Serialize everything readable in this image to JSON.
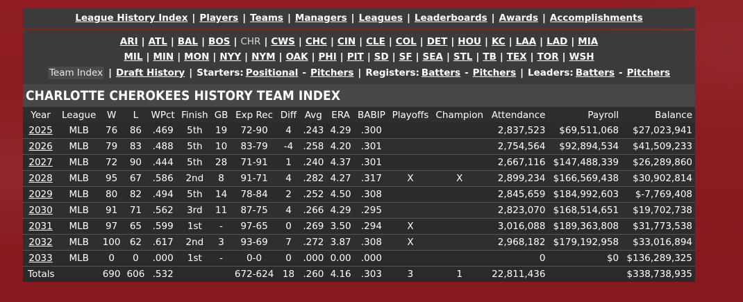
{
  "top_nav": [
    {
      "label": "League History Index"
    },
    {
      "label": "Players"
    },
    {
      "label": "Teams"
    },
    {
      "label": "Managers"
    },
    {
      "label": "Leagues"
    },
    {
      "label": "Leaderboards"
    },
    {
      "label": "Awards"
    },
    {
      "label": "Accomplishments"
    }
  ],
  "teams_row1": [
    "ARI",
    "ATL",
    "BAL",
    "BOS",
    "CHR",
    "CWS",
    "CHC",
    "CIN",
    "CLE",
    "COL",
    "DET",
    "HOU",
    "KC",
    "LAA",
    "LAD",
    "MIA"
  ],
  "teams_row2": [
    "MIL",
    "MIN",
    "MON",
    "NYY",
    "NYM",
    "OAK",
    "PHI",
    "PIT",
    "SD",
    "SF",
    "SEA",
    "STL",
    "TB",
    "TEX",
    "TOR",
    "WSH"
  ],
  "current_team": "CHR",
  "sub_nav": {
    "team_index": "Team Index",
    "draft_history": "Draft History",
    "starters_label": "Starters:",
    "starters_positional": "Positional",
    "starters_pitchers": "Pitchers",
    "registers_label": "Registers:",
    "registers_batters": "Batters",
    "registers_pitchers": "Pitchers",
    "leaders_label": "Leaders:",
    "leaders_batters": "Batters",
    "leaders_pitchers": "Pitchers",
    "dash": "-",
    "bar": "|"
  },
  "title": "CHARLOTTE CHEROKEES HISTORY TEAM INDEX",
  "columns": [
    "Year",
    "League",
    "W",
    "L",
    "WPct",
    "Finish",
    "GB",
    "Exp Rec",
    "Diff",
    "Avg",
    "ERA",
    "BABIP",
    "Playoffs",
    "Champion",
    "Attendance",
    "Payroll",
    "Balance"
  ],
  "rows": [
    [
      "2025",
      "MLB",
      "76",
      "86",
      ".469",
      "5th",
      "19",
      "72-90",
      "4",
      ".243",
      "4.29",
      ".300",
      "",
      "",
      "2,837,523",
      "$69,511,068",
      "$27,023,941"
    ],
    [
      "2026",
      "MLB",
      "79",
      "83",
      ".488",
      "5th",
      "10",
      "83-79",
      "-4",
      ".258",
      "4.20",
      ".301",
      "",
      "",
      "2,754,564",
      "$92,894,534",
      "$41,509,233"
    ],
    [
      "2027",
      "MLB",
      "72",
      "90",
      ".444",
      "5th",
      "28",
      "71-91",
      "1",
      ".240",
      "4.37",
      ".301",
      "",
      "",
      "2,667,116",
      "$147,488,339",
      "$26,289,860"
    ],
    [
      "2028",
      "MLB",
      "95",
      "67",
      ".586",
      "2nd",
      "8",
      "91-71",
      "4",
      ".282",
      "4.27",
      ".317",
      "X",
      "X",
      "2,899,234",
      "$166,569,438",
      "$30,902,814"
    ],
    [
      "2029",
      "MLB",
      "80",
      "82",
      ".494",
      "5th",
      "14",
      "78-84",
      "2",
      ".252",
      "4.50",
      ".308",
      "",
      "",
      "2,845,659",
      "$184,992,603",
      "$-7,769,408"
    ],
    [
      "2030",
      "MLB",
      "91",
      "71",
      ".562",
      "3rd",
      "11",
      "87-75",
      "4",
      ".266",
      "4.29",
      ".295",
      "",
      "",
      "2,823,070",
      "$168,514,651",
      "$19,702,738"
    ],
    [
      "2031",
      "MLB",
      "97",
      "65",
      ".599",
      "1st",
      "-",
      "97-65",
      "0",
      ".269",
      "3.50",
      ".294",
      "X",
      "",
      "3,016,088",
      "$189,363,808",
      "$31,773,538"
    ],
    [
      "2032",
      "MLB",
      "100",
      "62",
      ".617",
      "2nd",
      "3",
      "93-69",
      "7",
      ".272",
      "3.87",
      ".308",
      "X",
      "",
      "2,968,182",
      "$179,192,958",
      "$33,016,894"
    ],
    [
      "2033",
      "MLB",
      "0",
      "0",
      ".000",
      "1st",
      "-",
      "0-0",
      "0",
      ".000",
      "0.00",
      ".000",
      "",
      "",
      "0",
      "$0",
      "$136,289,325"
    ]
  ],
  "totals": [
    "Totals",
    "",
    "690",
    "606",
    ".532",
    "",
    "",
    "672-624",
    "18",
    ".260",
    "4.16",
    ".303",
    "3",
    "1",
    "22,811,436",
    "",
    "$338,738,935"
  ]
}
